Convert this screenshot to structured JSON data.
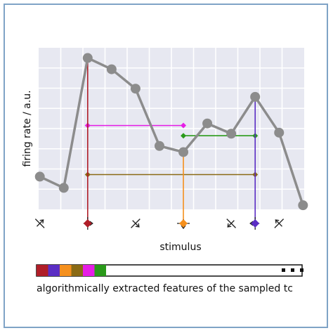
{
  "chart_data": {
    "type": "line",
    "xlabel": "stimulus",
    "ylabel": "firing rate / a.u.",
    "title": "",
    "grid": true,
    "background_color": "#e7e8f1",
    "line_color": "#8c8c8c",
    "x": [
      1,
      2,
      3,
      4,
      5,
      6,
      7,
      8,
      9,
      10,
      11,
      12
    ],
    "values": [
      1.6,
      1.05,
      7.4,
      6.85,
      5.9,
      3.1,
      2.8,
      4.2,
      3.7,
      5.5,
      3.75,
      0.2
    ],
    "ylim": [
      0,
      7.9
    ],
    "xlim": [
      0.95,
      12.05
    ],
    "stimulus_markers": [
      {
        "x": 1,
        "angle": 45,
        "highlight": null
      },
      {
        "x": 3,
        "angle": 90,
        "highlight": "#b01e28"
      },
      {
        "x": 5,
        "angle": 135,
        "highlight": null
      },
      {
        "x": 7,
        "angle": 180,
        "highlight": "#f5901e"
      },
      {
        "x": 9,
        "angle": 225,
        "highlight": null
      },
      {
        "x": 10,
        "angle": 270,
        "highlight": "#5b2ec4"
      },
      {
        "x": 11,
        "angle": 315,
        "highlight": null
      }
    ],
    "features": [
      {
        "color": "#e61ee6",
        "orientation": "horizontal",
        "x0": 3,
        "x1": 7,
        "y": 4.1
      },
      {
        "color": "#2a9a1a",
        "orientation": "horizontal",
        "x0": 7,
        "x1": 10,
        "y": 3.6
      },
      {
        "color": "#8a6a14",
        "orientation": "horizontal",
        "x0": 3,
        "x1": 10,
        "y": 1.7
      },
      {
        "color": "#b01e28",
        "orientation": "vertical",
        "x": 3,
        "y0": 7.4,
        "y1": -0.85
      },
      {
        "color": "#f5901e",
        "orientation": "vertical",
        "x": 7,
        "y0": 2.8,
        "y1": -0.85
      },
      {
        "color": "#5b2ec4",
        "orientation": "vertical",
        "x": 10,
        "y0": 5.5,
        "y1": -0.85
      }
    ]
  },
  "feature_bar": {
    "colors": [
      "#b01e28",
      "#5b2ec4",
      "#f5901e",
      "#8a6a14",
      "#e61ee6",
      "#2a9a1a"
    ],
    "caption": "algorithmically extracted features of the sampled tc"
  }
}
